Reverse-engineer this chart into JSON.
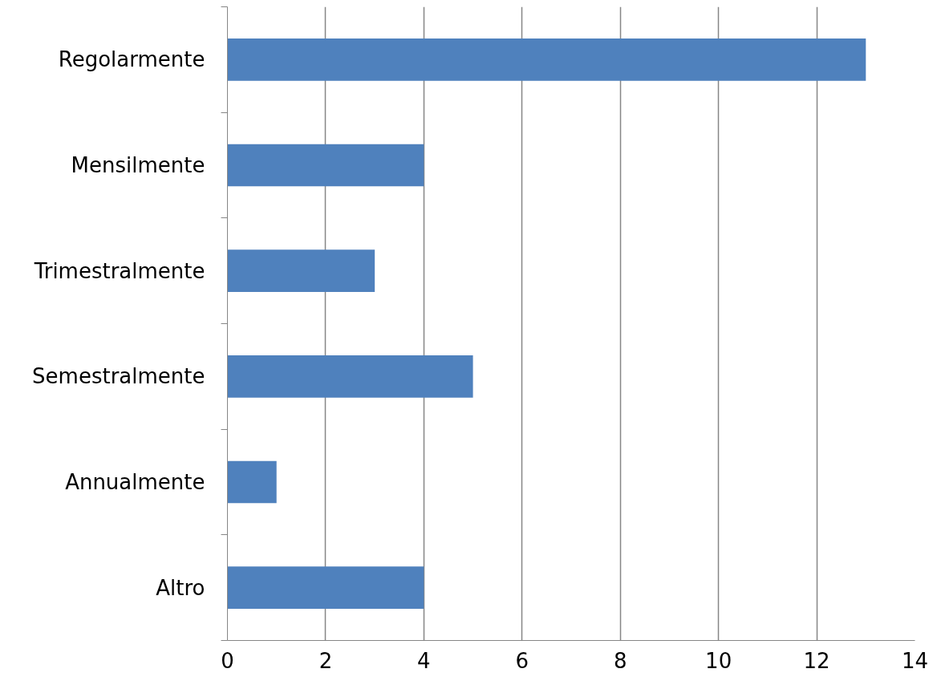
{
  "chart_data": {
    "type": "bar",
    "orientation": "horizontal",
    "categories": [
      "Regolarmente",
      "Mensilmente",
      "Trimestralmente",
      "Semestralmente",
      "Annualmente",
      "Altro"
    ],
    "values": [
      13,
      4,
      3,
      5,
      1,
      4
    ],
    "color": "#4f81bd",
    "xlim": [
      0,
      14
    ],
    "xticks": [
      0,
      2,
      4,
      6,
      8,
      10,
      12,
      14
    ],
    "grid": "x"
  }
}
